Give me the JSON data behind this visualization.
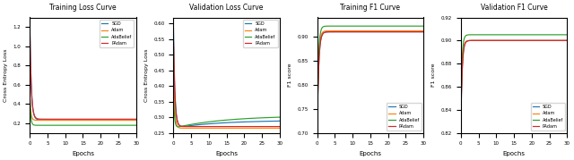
{
  "title1": "Training Loss Curve",
  "title2": "Validation Loss Curve",
  "title3": "Training F1 Curve",
  "title4": "Validation F1 Curve",
  "ylabel1": "Cross Entropy Loss",
  "ylabel2": "Cross Entropy Loss",
  "ylabel3": "F1 score",
  "ylabel4": "F1 score",
  "xlabel": "Epochs",
  "legend_labels": [
    "SGD",
    "Adam",
    "AdaBelief",
    "PAdam"
  ],
  "colors": [
    "#1f77b4",
    "#ff7f0e",
    "#2ca02c",
    "#d62728"
  ],
  "epochs": 30,
  "n_points": 300,
  "train_loss_ylim": [
    0.1,
    1.3
  ],
  "val_loss_ylim": [
    0.25,
    0.62
  ],
  "train_f1_ylim": [
    0.7,
    0.94
  ],
  "val_f1_ylim": [
    0.82,
    0.92
  ]
}
